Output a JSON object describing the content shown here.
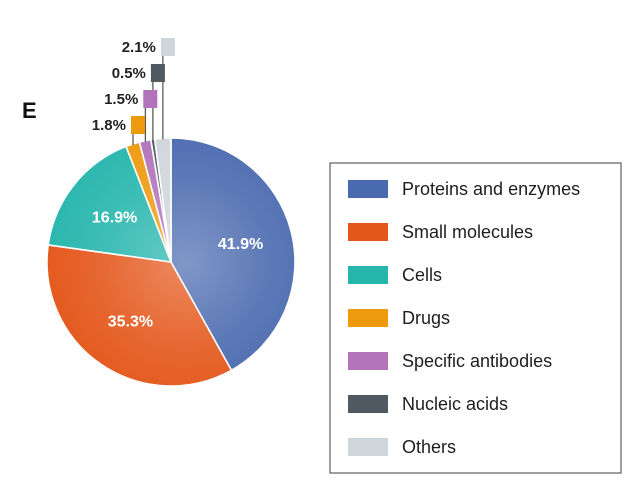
{
  "panel_label": "E",
  "chart_data": {
    "type": "pie",
    "title": "",
    "legend_position": "right",
    "slices": [
      {
        "name": "Proteins and enzymes",
        "value": 41.9,
        "label": "41.9%",
        "color": "#4a6aaf"
      },
      {
        "name": "Small molecules",
        "value": 35.3,
        "label": "35.3%",
        "color": "#e4571b"
      },
      {
        "name": "Cells",
        "value": 16.9,
        "label": "16.9%",
        "color": "#27b6ad"
      },
      {
        "name": "Drugs",
        "value": 1.8,
        "label": "1.8%",
        "color": "#ee9a0e"
      },
      {
        "name": "Specific antibodies",
        "value": 1.5,
        "label": "1.5%",
        "color": "#b273bb"
      },
      {
        "name": "Nucleic acids",
        "value": 0.5,
        "label": "0.5%",
        "color": "#4f5a63"
      },
      {
        "name": "Others",
        "value": 2.1,
        "label": "2.1%",
        "color": "#cfd5d9"
      }
    ]
  }
}
